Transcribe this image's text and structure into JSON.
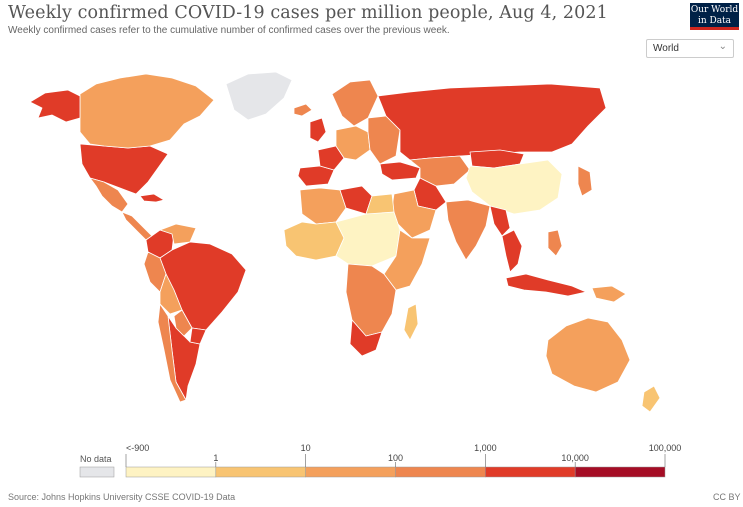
{
  "header": {
    "title": "Weekly confirmed COVID-19 cases per million people, Aug 4, 2021",
    "subtitle": "Weekly confirmed cases refer to the cumulative number of confirmed cases over the previous week."
  },
  "logo": {
    "line1": "Our World",
    "line2": "in Data"
  },
  "region_select": {
    "value": "World",
    "icon": "chevron-down-icon"
  },
  "legend": {
    "no_data_label": "No data",
    "no_data_color": "#e5e6e9",
    "tick_labels": [
      "<-900",
      "1",
      "10",
      "100",
      "1,000",
      "10,000",
      "100,000"
    ],
    "bins": [
      {
        "from": "<-900",
        "to": "1",
        "color": "#fef3c3"
      },
      {
        "from": "1",
        "to": "10",
        "color": "#f8c472"
      },
      {
        "from": "10",
        "to": "100",
        "color": "#f4a05c"
      },
      {
        "from": "100",
        "to": "1,000",
        "color": "#ee864f"
      },
      {
        "from": "1,000",
        "to": "10,000",
        "color": "#e03b28"
      },
      {
        "from": "10,000",
        "to": "100,000",
        "color": "#a50d25"
      }
    ]
  },
  "regions": [
    {
      "name": "United States",
      "bin": 4
    },
    {
      "name": "Canada",
      "bin": 2
    },
    {
      "name": "Alaska",
      "bin": 4
    },
    {
      "name": "Greenland",
      "bin": -1
    },
    {
      "name": "Mexico",
      "bin": 3
    },
    {
      "name": "Central America",
      "bin": 3
    },
    {
      "name": "Cuba",
      "bin": 4
    },
    {
      "name": "Colombia",
      "bin": 4
    },
    {
      "name": "Venezuela",
      "bin": 2
    },
    {
      "name": "Brazil",
      "bin": 4
    },
    {
      "name": "Peru",
      "bin": 3
    },
    {
      "name": "Bolivia",
      "bin": 2
    },
    {
      "name": "Argentina",
      "bin": 4
    },
    {
      "name": "Chile",
      "bin": 3
    },
    {
      "name": "Uruguay",
      "bin": 4
    },
    {
      "name": "Paraguay",
      "bin": 3
    },
    {
      "name": "Iceland",
      "bin": 3
    },
    {
      "name": "Scandinavia",
      "bin": 3
    },
    {
      "name": "United Kingdom",
      "bin": 4
    },
    {
      "name": "Spain",
      "bin": 4
    },
    {
      "name": "France",
      "bin": 4
    },
    {
      "name": "Central Europe",
      "bin": 2
    },
    {
      "name": "Eastern Europe",
      "bin": 3
    },
    {
      "name": "Russia",
      "bin": 4
    },
    {
      "name": "Turkey",
      "bin": 4
    },
    {
      "name": "Kazakhstan",
      "bin": 3
    },
    {
      "name": "Mongolia",
      "bin": 4
    },
    {
      "name": "China",
      "bin": 0
    },
    {
      "name": "Iran",
      "bin": 4
    },
    {
      "name": "Saudi Arabia",
      "bin": 2
    },
    {
      "name": "India",
      "bin": 3
    },
    {
      "name": "Myanmar",
      "bin": 4
    },
    {
      "name": "Thailand",
      "bin": 4
    },
    {
      "name": "Indonesia",
      "bin": 4
    },
    {
      "name": "Japan",
      "bin": 3
    },
    {
      "name": "Philippines",
      "bin": 3
    },
    {
      "name": "Papua New Guinea",
      "bin": 2
    },
    {
      "name": "Australia",
      "bin": 2
    },
    {
      "name": "New Zealand",
      "bin": 1
    },
    {
      "name": "North Africa",
      "bin": 2
    },
    {
      "name": "Libya",
      "bin": 4
    },
    {
      "name": "Egypt",
      "bin": 1
    },
    {
      "name": "West Africa",
      "bin": 1
    },
    {
      "name": "Central Africa",
      "bin": 0
    },
    {
      "name": "East Africa",
      "bin": 2
    },
    {
      "name": "Southern Africa",
      "bin": 3
    },
    {
      "name": "South Africa",
      "bin": 4
    },
    {
      "name": "Madagascar",
      "bin": 1
    }
  ],
  "footer": {
    "source": "Source: Johns Hopkins University CSSE COVID-19 Data",
    "license": "CC BY"
  }
}
